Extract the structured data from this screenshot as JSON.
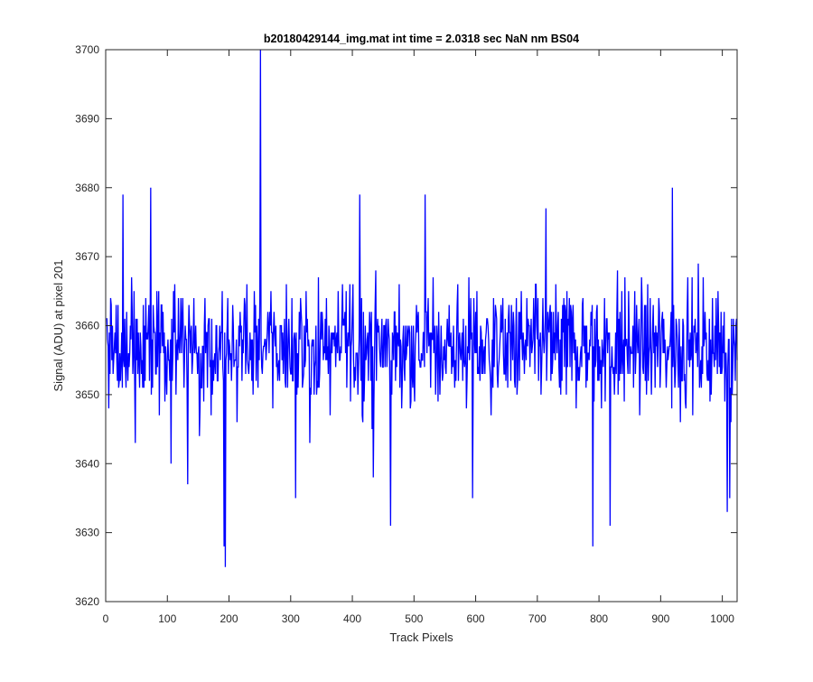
{
  "chart_data": {
    "type": "line",
    "title": "b20180429144_img.mat int time = 2.0318 sec  NaN nm BS04",
    "xlabel": "Track Pixels",
    "ylabel": "Signal (ADU) at pixel 201",
    "xlim": [
      0,
      1024
    ],
    "ylim": [
      3620,
      3700
    ],
    "xticks": [
      0,
      100,
      200,
      300,
      400,
      500,
      600,
      700,
      800,
      900,
      1000
    ],
    "yticks": [
      3620,
      3630,
      3640,
      3650,
      3660,
      3670,
      3680,
      3690,
      3700
    ],
    "xtick_labels": [
      "0",
      "100",
      "200",
      "300",
      "400",
      "500",
      "600",
      "700",
      "800",
      "900",
      "1000"
    ],
    "ytick_labels": [
      "3620",
      "3630",
      "3640",
      "3650",
      "3660",
      "3670",
      "3680",
      "3690",
      "3700"
    ],
    "grid": false,
    "legend": "none",
    "line_color": "#0000ff",
    "series": [
      {
        "x_start": 1,
        "x_step": 1,
        "notable_points": [
          {
            "x": 5,
            "y": 3648
          },
          {
            "x": 28,
            "y": 3679
          },
          {
            "x": 48,
            "y": 3643
          },
          {
            "x": 73,
            "y": 3680
          },
          {
            "x": 106,
            "y": 3640
          },
          {
            "x": 133,
            "y": 3637
          },
          {
            "x": 192,
            "y": 3628
          },
          {
            "x": 194,
            "y": 3625
          },
          {
            "x": 251,
            "y": 3700
          },
          {
            "x": 308,
            "y": 3635
          },
          {
            "x": 331,
            "y": 3643
          },
          {
            "x": 412,
            "y": 3679
          },
          {
            "x": 434,
            "y": 3638
          },
          {
            "x": 462,
            "y": 3631
          },
          {
            "x": 518,
            "y": 3679
          },
          {
            "x": 595,
            "y": 3635
          },
          {
            "x": 714,
            "y": 3677
          },
          {
            "x": 790,
            "y": 3628
          },
          {
            "x": 818,
            "y": 3631
          },
          {
            "x": 919,
            "y": 3680
          },
          {
            "x": 1008,
            "y": 3633
          },
          {
            "x": 1012,
            "y": 3635
          }
        ],
        "baseline_mean": 3657,
        "noise_range": [
          3643,
          3672
        ],
        "point_count": 1024
      }
    ]
  }
}
